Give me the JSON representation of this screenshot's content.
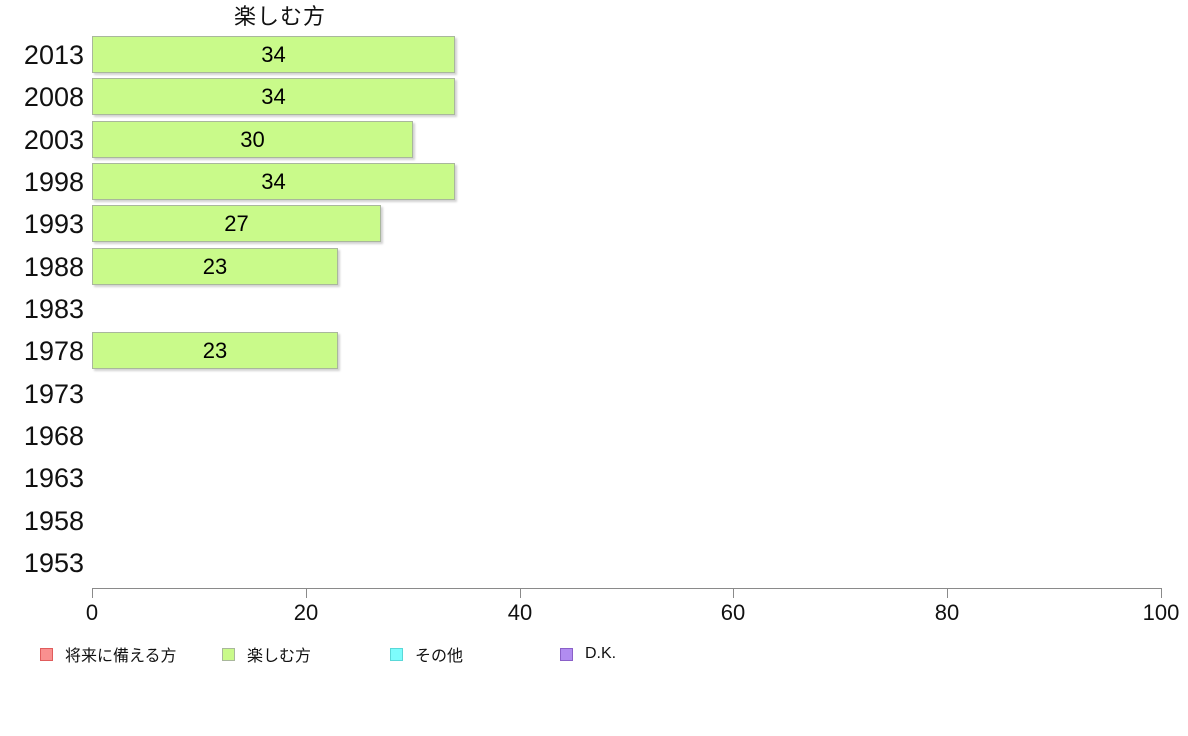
{
  "chart_data": {
    "type": "bar",
    "orientation": "horizontal",
    "title": "楽しむ方",
    "categories": [
      "2013",
      "2008",
      "2003",
      "1998",
      "1993",
      "1988",
      "1983",
      "1978",
      "1973",
      "1968",
      "1963",
      "1958",
      "1953"
    ],
    "series": [
      {
        "name": "楽しむ方",
        "values": [
          34,
          34,
          30,
          34,
          27,
          23,
          null,
          23,
          null,
          null,
          null,
          null,
          null
        ]
      }
    ],
    "xlabel": "",
    "ylabel": "",
    "xlim": [
      0,
      100
    ],
    "xticks": [
      "0",
      "20",
      "40",
      "60",
      "80",
      "100"
    ],
    "grid": false,
    "legend_position": "bottom",
    "bar_fill": "#c9fa8a",
    "bar_border": "#a9b79c",
    "axis_color": "#8a8a8a",
    "legend": [
      {
        "label": "将来に備える方",
        "color": "#f9908f",
        "border_color": "#e05c5c"
      },
      {
        "label": "楽しむ方",
        "color": "#c9fa8a",
        "border_color": "#a9b79c"
      },
      {
        "label": "その他",
        "color": "#7dfcfc",
        "border_color": "#5ad8d8"
      },
      {
        "label": "D.K.",
        "color": "#b18cf0",
        "border_color": "#8a60c8"
      }
    ]
  }
}
